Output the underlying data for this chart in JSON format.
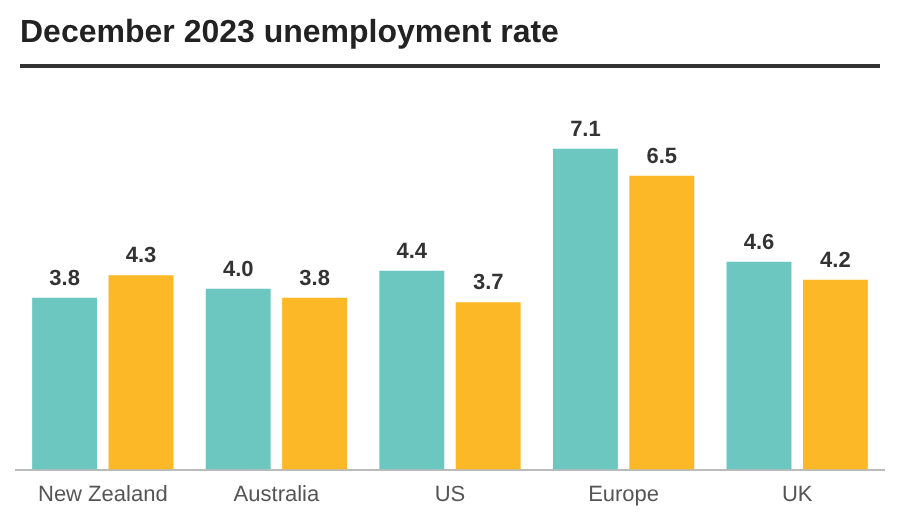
{
  "chart_data": {
    "type": "bar",
    "title": "December 2023 unemployment rate",
    "categories": [
      "New Zealand",
      "Australia",
      "US",
      "Europe",
      "UK"
    ],
    "series": [
      {
        "color": "#6cc7c1",
        "values": [
          3.8,
          4.0,
          4.4,
          7.1,
          4.6
        ],
        "value_labels": [
          "3.8",
          "4.0",
          "4.4",
          "7.1",
          "4.6"
        ]
      },
      {
        "color": "#fdb827",
        "values": [
          4.3,
          3.8,
          3.7,
          6.5,
          4.2
        ],
        "value_labels": [
          "4.3",
          "3.8",
          "3.7",
          "6.5",
          "4.2"
        ]
      }
    ],
    "grid": false,
    "legend": false
  }
}
